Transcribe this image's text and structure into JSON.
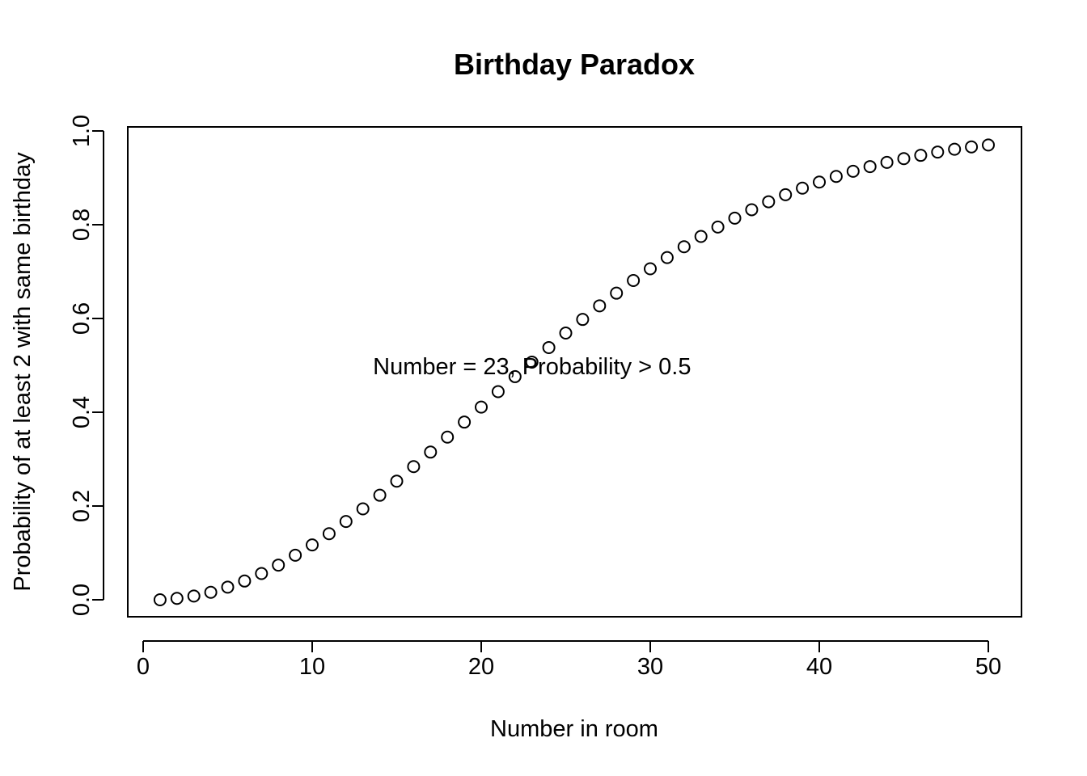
{
  "chart_data": {
    "type": "scatter",
    "title": "Birthday Paradox",
    "xlabel": "Number in room",
    "ylabel": "Probability of at least 2 with same birthday",
    "xlim": [
      0,
      50
    ],
    "ylim": [
      0,
      1
    ],
    "xticks": [
      "0",
      "10",
      "20",
      "30",
      "40",
      "50"
    ],
    "yticks": [
      "0.0",
      "0.2",
      "0.4",
      "0.6",
      "0.8",
      "1.0"
    ],
    "grid": false,
    "legend": "none",
    "marker": "open-circle",
    "annotation": {
      "text": "Number = 23,  Probability > 0.5",
      "x": 22,
      "y": 0.5
    },
    "series": [
      {
        "x": [
          1,
          2,
          3,
          4,
          5,
          6,
          7,
          8,
          9,
          10,
          11,
          12,
          13,
          14,
          15,
          16,
          17,
          18,
          19,
          20,
          21,
          22,
          23,
          24,
          25,
          26,
          27,
          28,
          29,
          30,
          31,
          32,
          33,
          34,
          35,
          36,
          37,
          38,
          39,
          40,
          41,
          42,
          43,
          44,
          45,
          46,
          47,
          48,
          49,
          50
        ],
        "values": [
          0.0,
          0.003,
          0.008,
          0.016,
          0.027,
          0.04,
          0.056,
          0.074,
          0.095,
          0.117,
          0.141,
          0.167,
          0.194,
          0.223,
          0.253,
          0.284,
          0.315,
          0.347,
          0.379,
          0.411,
          0.444,
          0.476,
          0.507,
          0.538,
          0.569,
          0.598,
          0.627,
          0.654,
          0.681,
          0.706,
          0.73,
          0.753,
          0.775,
          0.795,
          0.814,
          0.832,
          0.849,
          0.864,
          0.878,
          0.891,
          0.903,
          0.914,
          0.924,
          0.933,
          0.941,
          0.948,
          0.955,
          0.961,
          0.966,
          0.97
        ]
      }
    ]
  }
}
